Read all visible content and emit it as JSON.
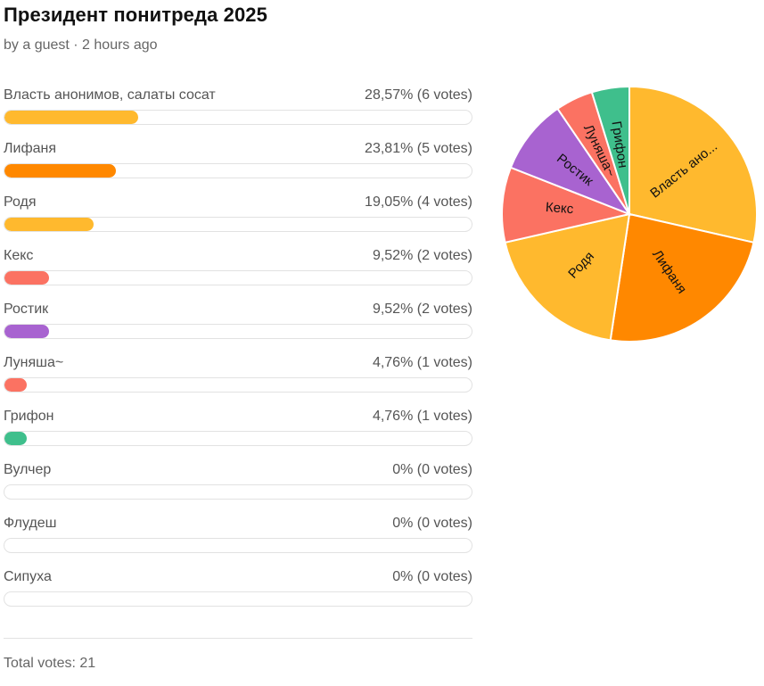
{
  "poll": {
    "title": "Президент понитреда 2025",
    "meta": "by a guest · 2 hours ago",
    "total_label": "Total votes: 21"
  },
  "options": [
    {
      "label": "Власть анонимов, салаты сосат",
      "result": "28,57% (6 votes)",
      "percent": 28.57,
      "color": "#ffb92e"
    },
    {
      "label": "Лифаня",
      "result": "23,81% (5 votes)",
      "percent": 23.81,
      "color": "#ff8800"
    },
    {
      "label": "Родя",
      "result": "19,05% (4 votes)",
      "percent": 19.05,
      "color": "#ffb92e"
    },
    {
      "label": "Кекс",
      "result": "9,52% (2 votes)",
      "percent": 9.52,
      "color": "#fb7262"
    },
    {
      "label": "Ростик",
      "result": "9,52% (2 votes)",
      "percent": 9.52,
      "color": "#a863d0"
    },
    {
      "label": "Луняша~",
      "result": "4,76% (1 votes)",
      "percent": 4.76,
      "color": "#fb7262"
    },
    {
      "label": "Грифон",
      "result": "4,76% (1 votes)",
      "percent": 4.76,
      "color": "#3fbf8c"
    },
    {
      "label": "Вулчер",
      "result": "0% (0 votes)",
      "percent": 0,
      "color": "#ffb92e"
    },
    {
      "label": "Флудеш",
      "result": "0% (0 votes)",
      "percent": 0,
      "color": "#ffb92e"
    },
    {
      "label": "Сипуха",
      "result": "0% (0 votes)",
      "percent": 0,
      "color": "#ffb92e"
    }
  ],
  "chart_data": {
    "type": "pie",
    "slices": [
      {
        "label": "Власть ано...",
        "value": 6,
        "color": "#ffb92e"
      },
      {
        "label": "Лифаня",
        "value": 5,
        "color": "#ff8800"
      },
      {
        "label": "Родя",
        "value": 4,
        "color": "#ffb92e"
      },
      {
        "label": "Кекс",
        "value": 2,
        "color": "#fb7262"
      },
      {
        "label": "Ростик",
        "value": 2,
        "color": "#a863d0"
      },
      {
        "label": "Луняша~",
        "value": 1,
        "color": "#fb7262"
      },
      {
        "label": "Грифон",
        "value": 1,
        "color": "#3fbf8c"
      }
    ]
  }
}
